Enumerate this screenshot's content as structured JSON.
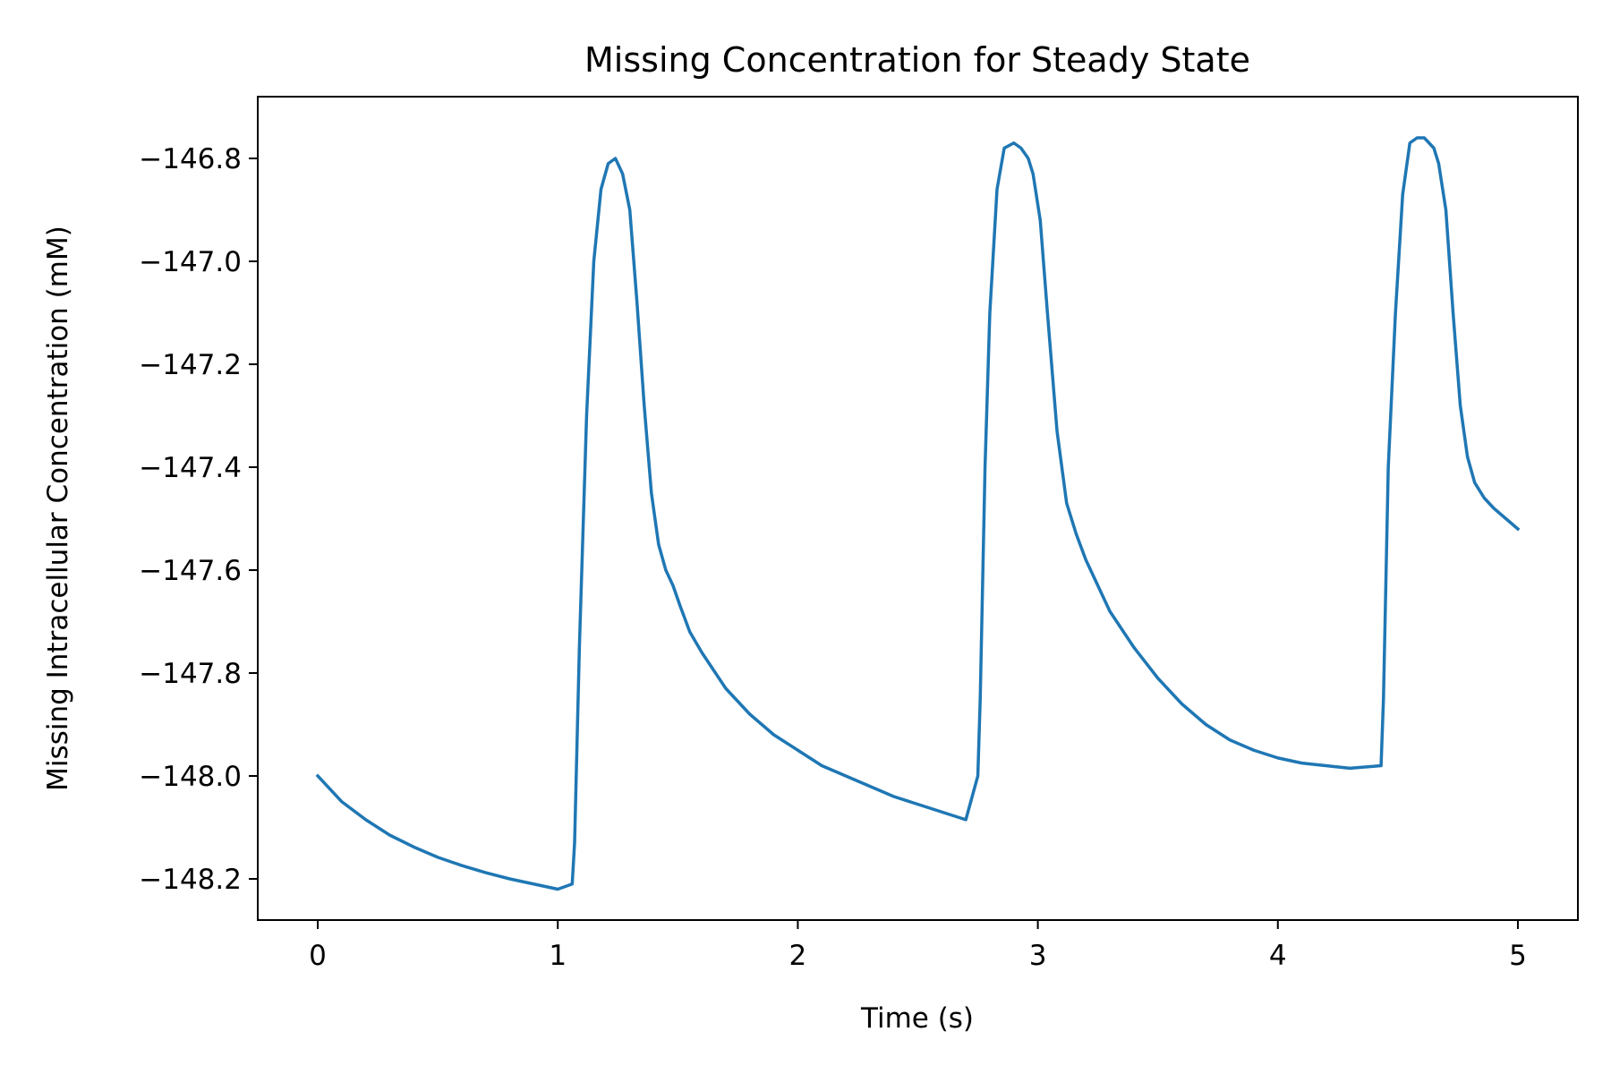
{
  "chart_data": {
    "type": "line",
    "title": "Missing Concentration for Steady State",
    "xlabel": "Time (s)",
    "ylabel": "Missing  Intracellular Concentration (mM)",
    "xlim": [
      -0.25,
      5.25
    ],
    "ylim": [
      -148.28,
      -146.68
    ],
    "xticks": [
      0,
      1,
      2,
      3,
      4,
      5
    ],
    "xtick_labels": [
      "0",
      "1",
      "2",
      "3",
      "4",
      "5"
    ],
    "yticks": [
      -146.8,
      -147.0,
      -147.2,
      -147.4,
      -147.6,
      -147.8,
      -148.0,
      -148.2
    ],
    "ytick_labels": [
      "−146.8",
      "−147.0",
      "−147.2",
      "−147.4",
      "−147.6",
      "−147.8",
      "−148.0",
      "−148.2"
    ],
    "grid": false,
    "series": [
      {
        "color": "#1f77b4",
        "x": [
          0.0,
          0.1,
          0.2,
          0.3,
          0.4,
          0.5,
          0.6,
          0.7,
          0.8,
          0.9,
          1.0,
          1.06,
          1.07,
          1.09,
          1.12,
          1.15,
          1.18,
          1.21,
          1.24,
          1.27,
          1.3,
          1.33,
          1.36,
          1.39,
          1.42,
          1.45,
          1.48,
          1.51,
          1.55,
          1.6,
          1.7,
          1.8,
          1.9,
          2.0,
          2.1,
          2.2,
          2.3,
          2.4,
          2.5,
          2.6,
          2.7,
          2.75,
          2.76,
          2.78,
          2.8,
          2.83,
          2.86,
          2.9,
          2.93,
          2.96,
          2.98,
          3.01,
          3.04,
          3.08,
          3.12,
          3.16,
          3.2,
          3.25,
          3.3,
          3.4,
          3.5,
          3.6,
          3.7,
          3.8,
          3.9,
          4.0,
          4.1,
          4.2,
          4.3,
          4.43,
          4.44,
          4.46,
          4.49,
          4.52,
          4.55,
          4.58,
          4.61,
          4.63,
          4.65,
          4.67,
          4.7,
          4.73,
          4.76,
          4.79,
          4.82,
          4.86,
          4.9,
          4.95,
          5.0
        ],
        "y": [
          -148.0,
          -148.05,
          -148.085,
          -148.115,
          -148.138,
          -148.158,
          -148.174,
          -148.188,
          -148.2,
          -148.21,
          -148.22,
          -148.21,
          -148.13,
          -147.75,
          -147.3,
          -147.0,
          -146.86,
          -146.81,
          -146.8,
          -146.83,
          -146.9,
          -147.08,
          -147.28,
          -147.45,
          -147.55,
          -147.6,
          -147.63,
          -147.67,
          -147.72,
          -147.76,
          -147.83,
          -147.88,
          -147.92,
          -147.95,
          -147.98,
          -148.0,
          -148.02,
          -148.04,
          -148.055,
          -148.07,
          -148.085,
          -148.0,
          -147.85,
          -147.4,
          -147.1,
          -146.86,
          -146.78,
          -146.77,
          -146.78,
          -146.8,
          -146.83,
          -146.92,
          -147.1,
          -147.33,
          -147.47,
          -147.53,
          -147.58,
          -147.63,
          -147.68,
          -147.75,
          -147.81,
          -147.86,
          -147.9,
          -147.93,
          -147.95,
          -147.965,
          -147.975,
          -147.98,
          -147.985,
          -147.98,
          -147.85,
          -147.4,
          -147.1,
          -146.87,
          -146.77,
          -146.76,
          -146.76,
          -146.77,
          -146.78,
          -146.81,
          -146.9,
          -147.1,
          -147.28,
          -147.38,
          -147.43,
          -147.46,
          -147.48,
          -147.5,
          -147.52
        ]
      }
    ]
  }
}
